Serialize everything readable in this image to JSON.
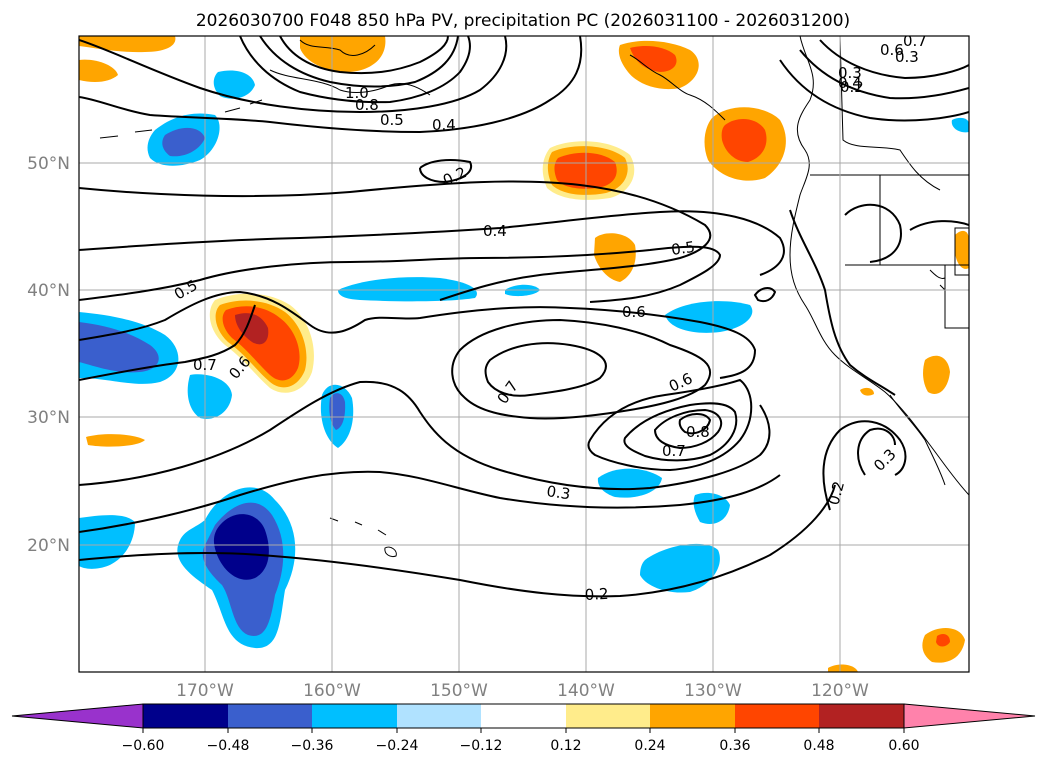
{
  "title": "2026030700 F048 850 hPa PV, precipitation PC (2026031100 - 2026031200)",
  "lat_labels": [
    "50°N",
    "40°N",
    "30°N",
    "20°N"
  ],
  "lon_labels": [
    "170°W",
    "160°W",
    "150°W",
    "140°W",
    "130°W",
    "120°W"
  ],
  "pv_contour_labels": [
    "0.7",
    "0.6",
    "0.4",
    "0.3",
    "0.3",
    "0.2",
    "1.0",
    "0.8",
    "0.5",
    "0.4",
    "0.2",
    "0.4",
    "0.5",
    "0.5",
    "0.6",
    "0.7",
    "0.6",
    "0.7",
    "0.6",
    "0.8",
    "0.7",
    "0.3",
    "0.2",
    "0.2",
    "0.3"
  ],
  "colorbar": {
    "ticks": [
      "−0.60",
      "−0.48",
      "−0.36",
      "−0.24",
      "−0.12",
      "0.12",
      "0.24",
      "0.36",
      "0.48",
      "0.60"
    ],
    "colors": [
      "#9932cc",
      "#00008b",
      "#3a5fcd",
      "#00bfff",
      "#b0e2ff",
      "#ffffff",
      "#ffec8b",
      "#ffa500",
      "#ff4500",
      "#b22222",
      "#ff82ab"
    ]
  },
  "shading_colors": {
    "neg_strong": "#00008b",
    "neg_mid": "#3a5fcd",
    "neg_weak": "#00bfff",
    "neg_faint": "#b0e2ff",
    "pos_faint": "#ffec8b",
    "pos_weak": "#ffa500",
    "pos_mid": "#ff4500",
    "pos_strong": "#b22222"
  }
}
